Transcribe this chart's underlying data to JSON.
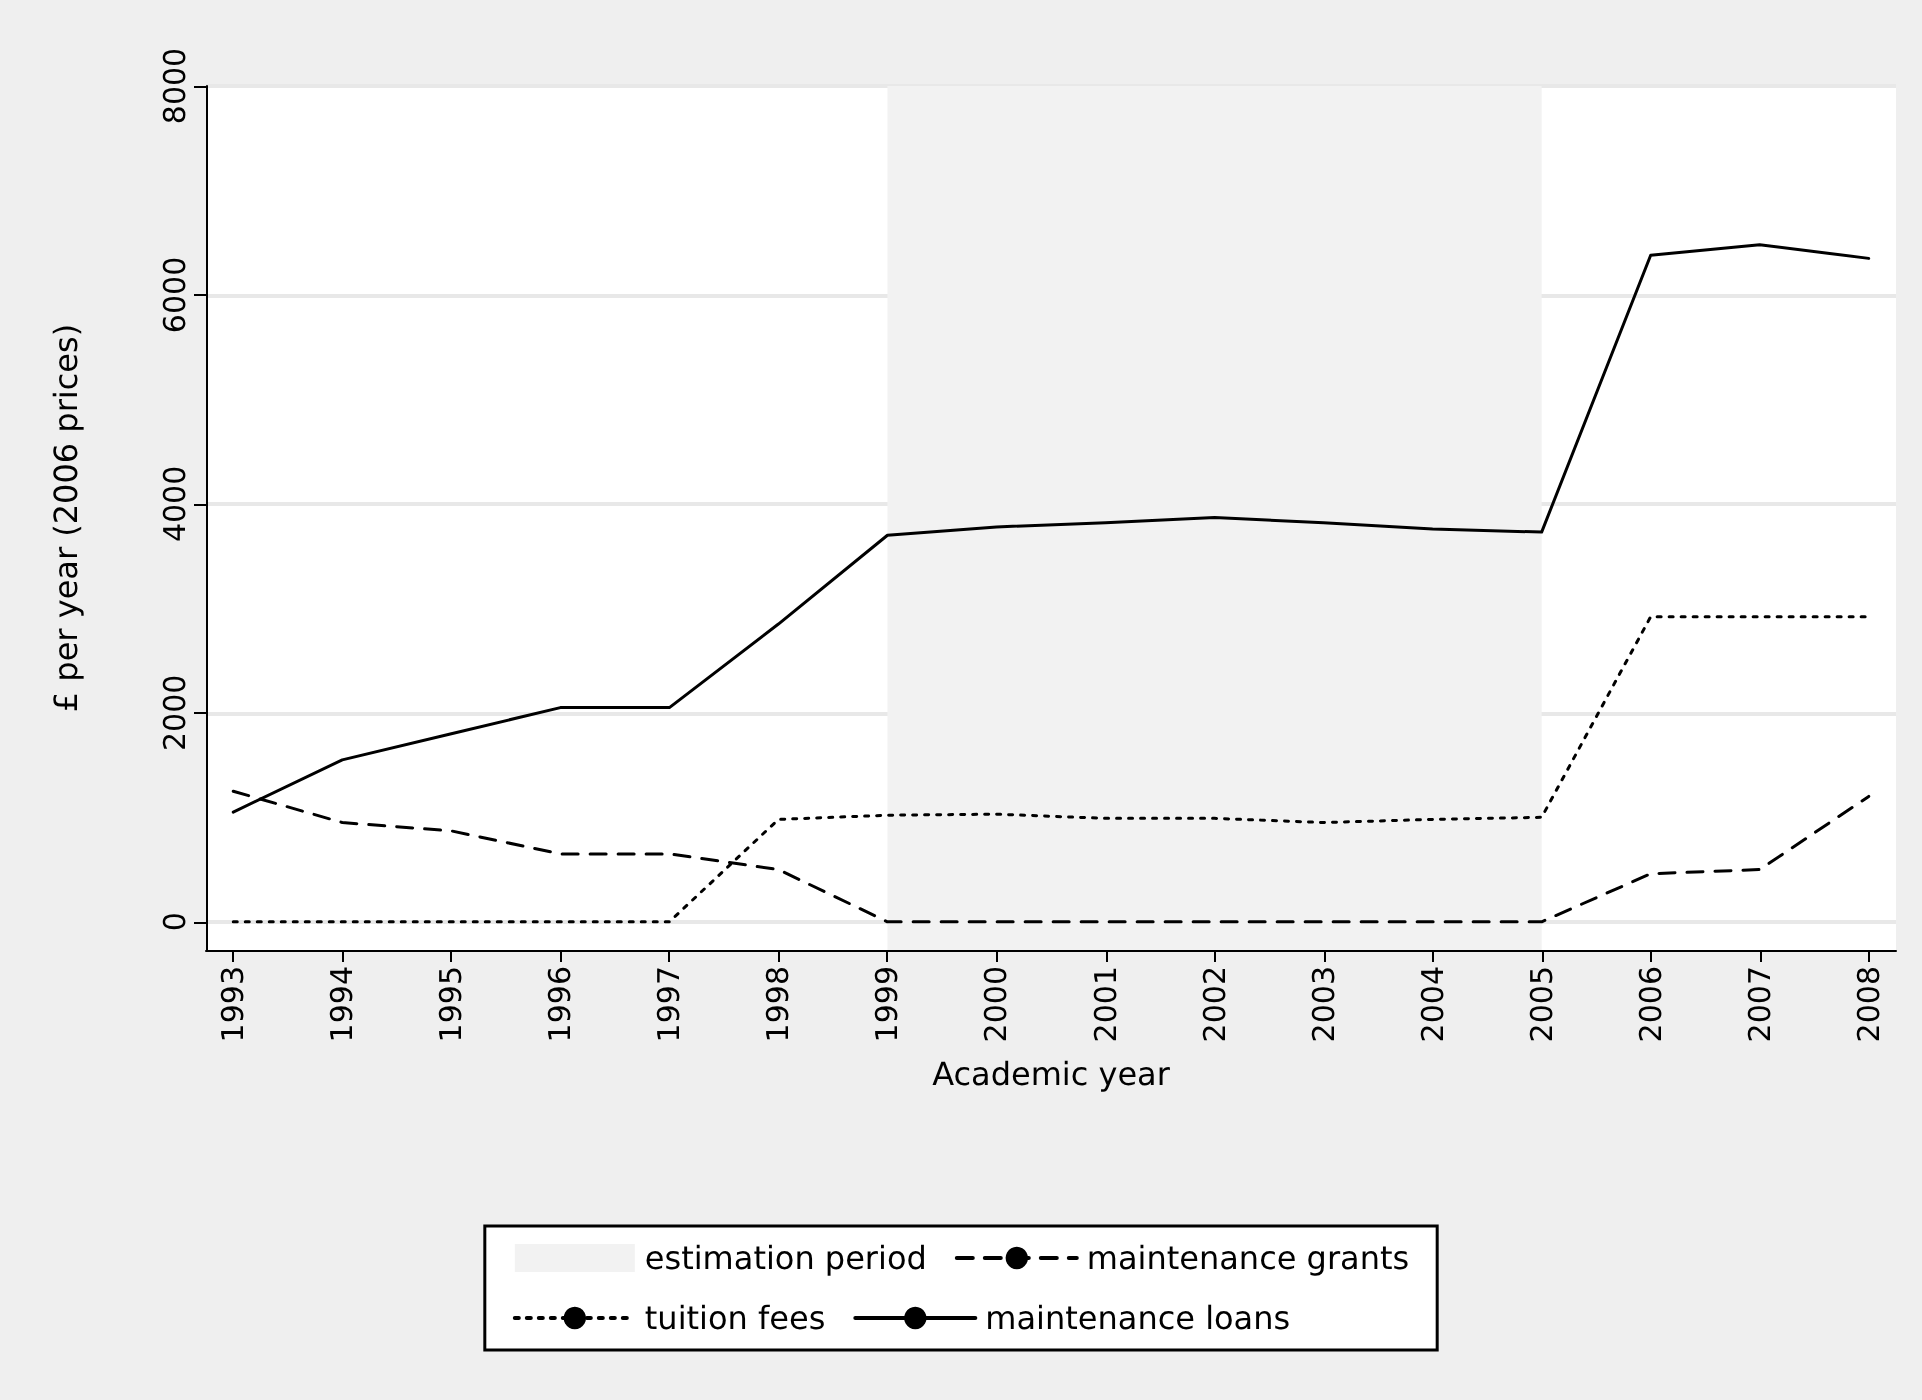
{
  "chart_data": {
    "type": "line",
    "xlabel": "Academic year",
    "ylabel": "£ per year (2006 prices)",
    "x": [
      1993,
      1994,
      1995,
      1996,
      1997,
      1998,
      1999,
      2000,
      2001,
      2002,
      2003,
      2004,
      2005,
      2006,
      2007,
      2008
    ],
    "xlim": [
      1992.75,
      2008.25
    ],
    "xticks": [
      1993,
      1994,
      1995,
      1996,
      1997,
      1998,
      1999,
      2000,
      2001,
      2002,
      2003,
      2004,
      2005,
      2006,
      2007,
      2008
    ],
    "ylim": [
      -270,
      8000
    ],
    "yticks": [
      0,
      2000,
      4000,
      6000,
      8000
    ],
    "grid": "y",
    "legend": "bottom",
    "marker": "none",
    "bands": [
      {
        "axis": "x",
        "from": 1999,
        "to": 2005,
        "label": "estimation period",
        "color": "#f2f2f2"
      }
    ],
    "series": [
      {
        "name": "maintenance grants",
        "color": "#000000",
        "line_style": "dashed",
        "values": [
          1250,
          950,
          870,
          650,
          650,
          500,
          0,
          0,
          0,
          0,
          0,
          0,
          0,
          460,
          500,
          1200
        ]
      },
      {
        "name": "tuition fees",
        "color": "#000000",
        "line_style": "dotted",
        "values": [
          0,
          0,
          0,
          0,
          0,
          980,
          1020,
          1030,
          990,
          990,
          950,
          980,
          1000,
          2920,
          2920,
          2920
        ]
      },
      {
        "name": "maintenance loans",
        "color": "#000000",
        "line_style": "solid",
        "values": [
          1050,
          1550,
          1800,
          2050,
          2050,
          2850,
          3700,
          3780,
          3820,
          3870,
          3820,
          3760,
          3730,
          6380,
          6480,
          6350
        ]
      }
    ]
  }
}
